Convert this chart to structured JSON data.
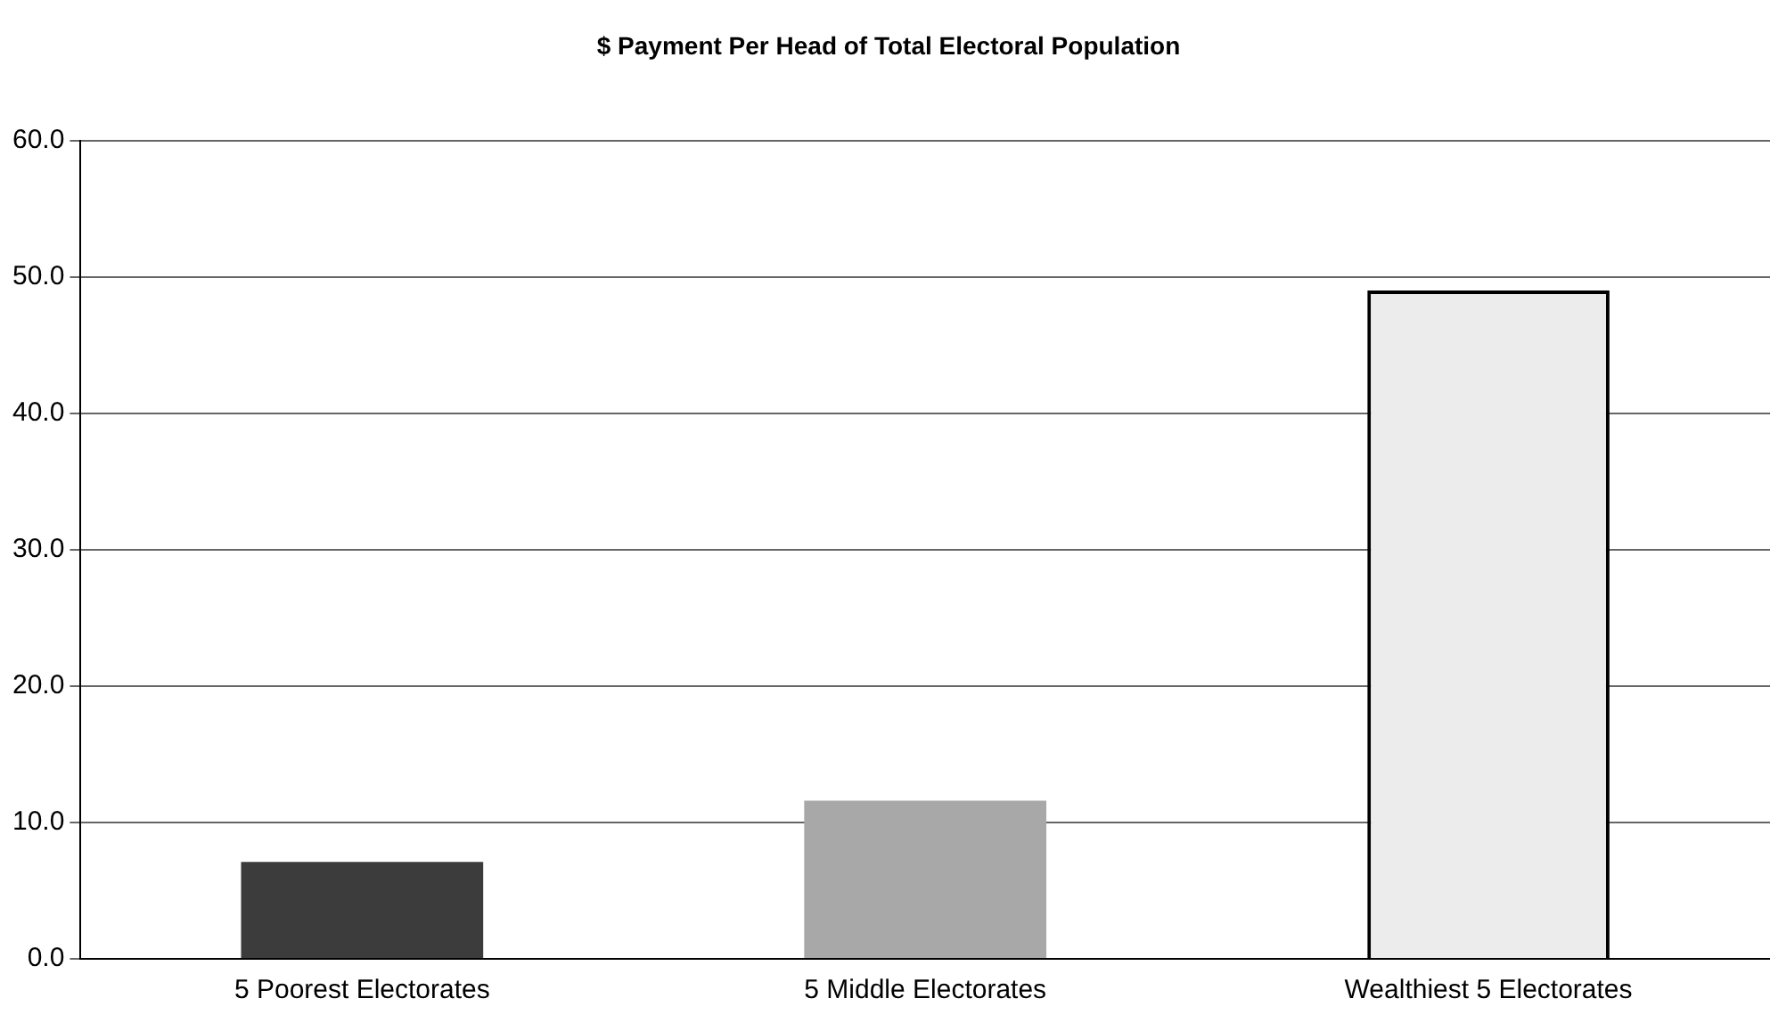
{
  "chart_data": {
    "type": "bar",
    "title": "$ Payment Per Head of Total Electoral Population",
    "categories": [
      "5 Poorest Electorates",
      "5 Middle Electorates",
      "Wealthiest 5 Electorates"
    ],
    "values": [
      7.1,
      11.6,
      49.0
    ],
    "colors": [
      "#3c3c3c",
      "#a8a8a8",
      "#ececec"
    ],
    "ylim": [
      0,
      60
    ],
    "yticks": [
      {
        "value": 0,
        "label": "0.0"
      },
      {
        "value": 10,
        "label": "10.0"
      },
      {
        "value": 20,
        "label": "20.0"
      },
      {
        "value": 30,
        "label": "30.0"
      },
      {
        "value": 40,
        "label": "40.0"
      },
      {
        "value": 50,
        "label": "50.0"
      },
      {
        "value": 60,
        "label": "60.0"
      }
    ],
    "grid": "y",
    "legend": false
  }
}
